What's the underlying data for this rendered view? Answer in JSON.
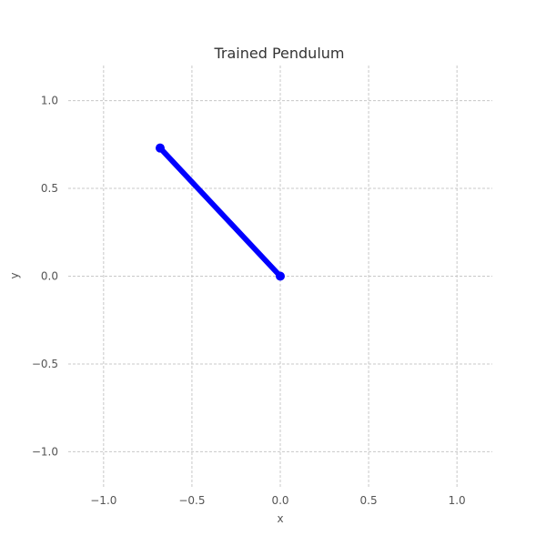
{
  "chart_data": {
    "type": "line",
    "title": "Trained Pendulum",
    "xlabel": "x",
    "ylabel": "y",
    "xlim": [
      -1.2,
      1.2
    ],
    "ylim": [
      -1.2,
      1.2
    ],
    "grid": true,
    "x_ticks": [
      -1.0,
      -0.5,
      0.0,
      0.5,
      1.0
    ],
    "y_ticks": [
      -1.0,
      -0.5,
      0.0,
      0.5,
      1.0
    ],
    "x_tick_labels": [
      "−1.0",
      "−0.5",
      "0.0",
      "0.5",
      "1.0"
    ],
    "y_tick_labels": [
      "−1.0",
      "−0.5",
      "0.0",
      "0.5",
      "1.0"
    ],
    "series": [
      {
        "x": [
          0.0,
          -0.68
        ],
        "y": [
          0.0,
          0.73
        ],
        "color": "#0000ff",
        "marker": "circle"
      }
    ]
  }
}
